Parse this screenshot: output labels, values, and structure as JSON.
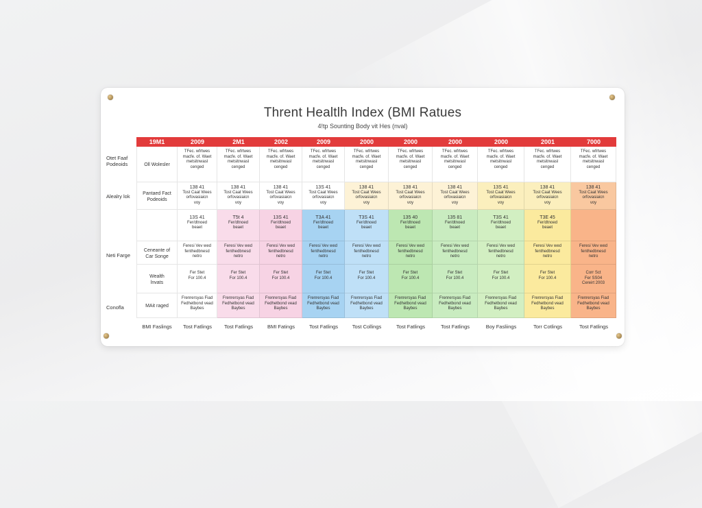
{
  "poster": {
    "title": "Thrent Healtlh Index (BMI Ratues",
    "subtitle": "4!tp Sounting Body vit Hes (nval)"
  },
  "header": [
    "19M1",
    "2009",
    "2M1",
    "2002",
    "2009",
    "2000",
    "2000",
    "2000",
    "2000",
    "2001",
    "7000"
  ],
  "row_labels": [
    [
      "Otet Faaf",
      "Podeoids"
    ],
    [
      "Alealry lok"
    ],
    [],
    [
      "Neti Farge"
    ],
    [],
    [
      "Conofla"
    ]
  ],
  "col0": [
    [
      "Oll Wolesler"
    ],
    [
      "Pantaed Fact",
      "Podeoids"
    ],
    [],
    [
      "Ceneante of",
      "Car Songe"
    ],
    [
      "Wealth",
      "lnvats"
    ],
    [
      "MAit raged"
    ]
  ],
  "colors": {
    "header_red": "#e23b3b",
    "col_tints": [
      "#ffffff",
      "#ffffff",
      "#f9dcea",
      "#f7d3e4",
      "#a7d3f2",
      "#bfe0f7",
      "#bde7b2",
      "#c9ecc0",
      "#d2efc2",
      "#fbea9e",
      "#f9b489"
    ]
  },
  "cells": {
    "r0": [
      "TFec. wfrtwes",
      "macfe. of. Waet",
      "metsitnwasl",
      "cenged"
    ],
    "r1": [
      "Tsa 41",
      "Tost Caat Wees",
      "orfovasiaicn",
      "voy"
    ],
    "r2": [
      "T5A1",
      "Fer/dtnoed",
      "beaet"
    ],
    "r3": [
      "Feresi Vev wed",
      "fenthedbnesd",
      "netro"
    ],
    "r4": [
      "Fer Stet",
      "For 100.4"
    ],
    "r5": [
      "Frenrersyas Fiad",
      "Fedhetbond vead",
      "Baybes"
    ]
  },
  "cells_variants": {
    "r1_nums": [
      "138 41",
      "138 41",
      "138 41",
      "13S 41",
      "138 41",
      "138 41",
      "138 41",
      "13S 41",
      "138 41",
      "138 41"
    ],
    "r2_nums": [
      "13S 41",
      "T5t 4",
      "13S 41",
      "T3A 41",
      "T3S 41",
      "135 40",
      "135 81",
      "T3S 41",
      "T3E 45",
      ""
    ],
    "r4_last": [
      "Corr Sct",
      "Fer SS04",
      "Cereirt 2003"
    ]
  },
  "footer": [
    "BMI Faslings",
    "Tost Fatlings",
    "Tost Fatlings",
    "BMI Fatings",
    "Tost Fatlings",
    "Tost Collings",
    "Tost Fatlings",
    "Tost Fatlings",
    "Boy Fasliings",
    "Torr Cotlings",
    "Tost Fatlings"
  ]
}
